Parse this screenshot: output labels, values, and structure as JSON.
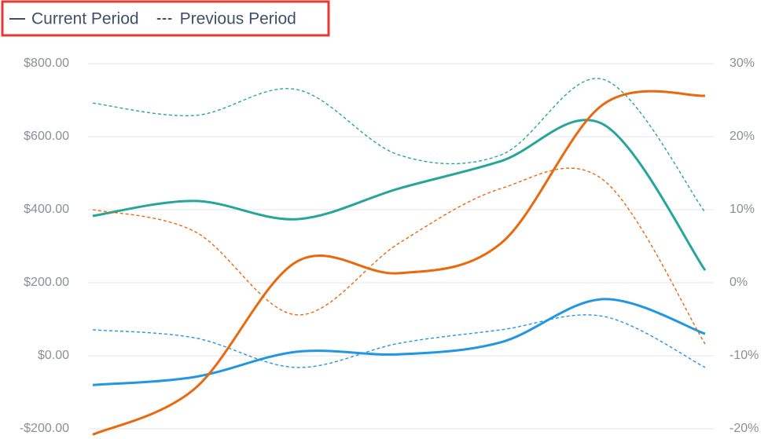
{
  "chart_data": {
    "type": "line",
    "categories": [
      null,
      null,
      null,
      null,
      null,
      null,
      null
    ],
    "legend": [
      {
        "label": "Current Period",
        "dash": "solid"
      },
      {
        "label": "Previous Period",
        "dash": "dotted"
      }
    ],
    "series": [
      {
        "color": "#26a69a",
        "dash": "solid",
        "values": [
          383,
          424,
          374,
          458,
          533,
          634,
          234
        ]
      },
      {
        "color": "#26a69a",
        "dash": "dashed",
        "values": [
          692,
          658,
          729,
          550,
          550,
          757,
          393
        ]
      },
      {
        "color": "#2196e3",
        "dash": "solid",
        "values": [
          -80,
          -58,
          11,
          4,
          37,
          155,
          60
        ]
      },
      {
        "color": "#2196e3",
        "dash": "dashed",
        "values": [
          71,
          49,
          -32,
          34,
          71,
          108,
          -32
        ]
      },
      {
        "color": "#e8690e",
        "dash": "solid",
        "axis": "y2",
        "values": [
          -20.8,
          -14.5,
          2.9,
          1.3,
          5.4,
          24.4,
          25.6
        ]
      },
      {
        "color": "#e8690e",
        "dash": "dashed",
        "axis": "y2",
        "values": [
          10,
          7,
          -4.4,
          5.4,
          12.9,
          14.1,
          -8.4
        ]
      }
    ],
    "ylim": [
      -200,
      800
    ],
    "yticks": [
      {
        "value": -200,
        "label": "-$200.00"
      },
      {
        "value": 0,
        "label": "$0.00"
      },
      {
        "value": 200,
        "label": "$200.00"
      },
      {
        "value": 400,
        "label": "$400.00"
      },
      {
        "value": 600,
        "label": "$600.00"
      },
      {
        "value": 800,
        "label": "$800.00"
      }
    ],
    "y2lim": [
      -20,
      30
    ],
    "y2ticks": [
      {
        "value": -20,
        "label": "-20%"
      },
      {
        "value": -10,
        "label": "-10%"
      },
      {
        "value": 0,
        "label": "0%"
      },
      {
        "value": 10,
        "label": "10%"
      },
      {
        "value": 20,
        "label": "20%"
      },
      {
        "value": 30,
        "label": "30%"
      }
    ],
    "grid": true
  }
}
